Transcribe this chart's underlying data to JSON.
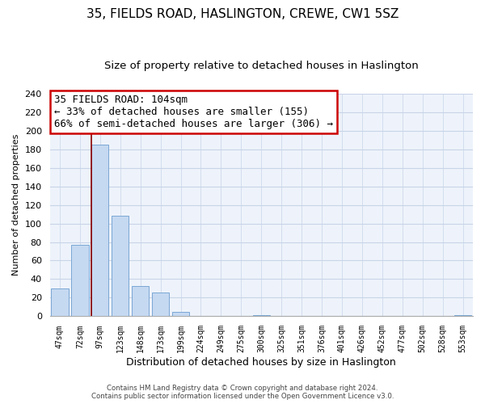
{
  "title": "35, FIELDS ROAD, HASLINGTON, CREWE, CW1 5SZ",
  "subtitle": "Size of property relative to detached houses in Haslington",
  "xlabel": "Distribution of detached houses by size in Haslington",
  "ylabel": "Number of detached properties",
  "bar_labels": [
    "47sqm",
    "72sqm",
    "97sqm",
    "123sqm",
    "148sqm",
    "173sqm",
    "199sqm",
    "224sqm",
    "249sqm",
    "275sqm",
    "300sqm",
    "325sqm",
    "351sqm",
    "376sqm",
    "401sqm",
    "426sqm",
    "452sqm",
    "477sqm",
    "502sqm",
    "528sqm",
    "553sqm"
  ],
  "bar_values": [
    30,
    77,
    185,
    108,
    33,
    26,
    5,
    0,
    0,
    0,
    1,
    0,
    0,
    0,
    0,
    0,
    0,
    0,
    0,
    0,
    1
  ],
  "bar_color": "#c5d9f1",
  "bar_edge_color": "#7ba7d4",
  "vline_x_index": 2,
  "vline_color": "#8b0000",
  "ylim": [
    0,
    240
  ],
  "yticks": [
    0,
    20,
    40,
    60,
    80,
    100,
    120,
    140,
    160,
    180,
    200,
    220,
    240
  ],
  "annotation_title": "35 FIELDS ROAD: 104sqm",
  "annotation_line1": "← 33% of detached houses are smaller (155)",
  "annotation_line2": "66% of semi-detached houses are larger (306) →",
  "annotation_box_color": "#ffffff",
  "annotation_border_color": "#cc0000",
  "footer_line1": "Contains HM Land Registry data © Crown copyright and database right 2024.",
  "footer_line2": "Contains public sector information licensed under the Open Government Licence v3.0.",
  "bg_color": "#ffffff",
  "plot_bg_color": "#eef3fb",
  "grid_color": "#c8d4e8",
  "title_fontsize": 11,
  "subtitle_fontsize": 9.5,
  "ylabel_fontsize": 8,
  "xlabel_fontsize": 9
}
